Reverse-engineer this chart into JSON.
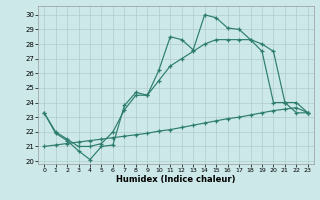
{
  "title": "",
  "xlabel": "Humidex (Indice chaleur)",
  "background_color": "#cce8e8",
  "grid_color": "#b0cccc",
  "line_color": "#2d7d6e",
  "xlim": [
    -0.5,
    23.5
  ],
  "ylim": [
    19.8,
    30.6
  ],
  "xticks": [
    0,
    1,
    2,
    3,
    4,
    5,
    6,
    7,
    8,
    9,
    10,
    11,
    12,
    13,
    14,
    15,
    16,
    17,
    18,
    19,
    20,
    21,
    22,
    23
  ],
  "yticks": [
    20,
    21,
    22,
    23,
    24,
    25,
    26,
    27,
    28,
    29,
    30
  ],
  "zigzag_x": [
    0,
    1,
    2,
    3,
    4,
    5,
    6,
    7,
    8,
    9,
    10,
    11,
    12,
    13,
    14,
    15,
    16,
    17,
    18,
    19,
    20,
    21,
    22,
    23
  ],
  "zigzag_y": [
    23.3,
    21.9,
    21.4,
    20.7,
    20.1,
    21.0,
    21.1,
    23.8,
    24.7,
    24.5,
    26.2,
    28.5,
    28.3,
    27.6,
    30.0,
    29.8,
    29.1,
    29.0,
    28.3,
    27.5,
    24.0,
    24.0,
    23.3,
    23.3
  ],
  "bottom_x": [
    0,
    1,
    2,
    3,
    4,
    5,
    6,
    7,
    8,
    9,
    10,
    11,
    12,
    13,
    14,
    15,
    16,
    17,
    18,
    19,
    20,
    21,
    22,
    23
  ],
  "bottom_y": [
    21.0,
    21.1,
    21.2,
    21.3,
    21.4,
    21.5,
    21.6,
    21.7,
    21.8,
    21.9,
    22.05,
    22.15,
    22.3,
    22.45,
    22.6,
    22.75,
    22.9,
    23.0,
    23.15,
    23.3,
    23.45,
    23.55,
    23.65,
    23.3
  ],
  "upper_x": [
    0,
    1,
    2,
    3,
    4,
    5,
    6,
    7,
    8,
    9,
    10,
    11,
    12,
    13,
    14,
    15,
    16,
    17,
    18,
    19,
    20,
    21,
    22,
    23
  ],
  "upper_y": [
    23.3,
    22.0,
    21.5,
    21.0,
    21.0,
    21.2,
    22.0,
    23.5,
    24.5,
    24.5,
    25.5,
    26.5,
    27.0,
    27.5,
    28.0,
    28.3,
    28.3,
    28.3,
    28.3,
    28.0,
    27.5,
    24.0,
    24.0,
    23.3
  ]
}
